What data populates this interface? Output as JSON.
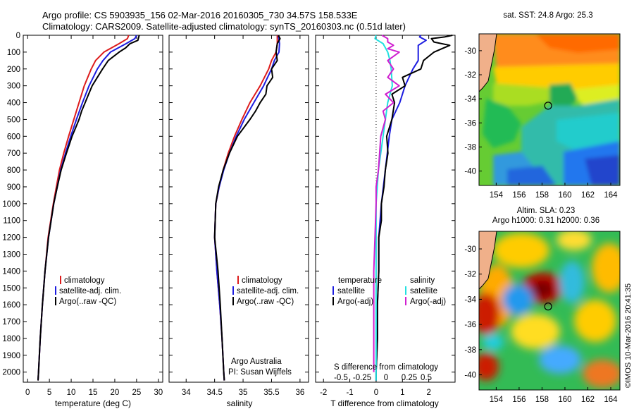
{
  "header": {
    "title_line1": "Argo profile: CS 5903935_156 02-Mar-2016 20160305_730 34.57S 158.533E",
    "title_line2": "Climatology: CARS2009. Satellite-adjusted climatology: synTS_20160303.nc (0.51d later)"
  },
  "colors": {
    "climatology": "#dd1c1c",
    "satellite": "#1c1ce0",
    "argo": "#000000",
    "salinity_satellite": "#22e0e0",
    "salinity_argo": "#d020d0"
  },
  "credit": "©IMOS 10-Mar-2016 20:41:35",
  "chart_data": [
    {
      "id": "temperature",
      "type": "line",
      "xlabel": "temperature (deg C)",
      "ylabel": "",
      "xlim": [
        -1,
        31
      ],
      "ylim": [
        2060,
        0
      ],
      "x_ticks": [
        0,
        5,
        10,
        15,
        20,
        25,
        30
      ],
      "y_ticks": [
        0,
        100,
        200,
        300,
        400,
        500,
        600,
        700,
        800,
        900,
        1000,
        1100,
        1200,
        1300,
        1400,
        1500,
        1600,
        1700,
        1800,
        1900,
        2000
      ],
      "legend": [
        "climatology",
        "satellite-adj. clim.",
        "Argo(..raw -QC)"
      ],
      "legend_position": "lower-center",
      "series": [
        {
          "name": "climatology",
          "color_key": "climatology",
          "depth": [
            0,
            20,
            50,
            100,
            150,
            200,
            300,
            400,
            500,
            600,
            700,
            800,
            900,
            1000,
            1200,
            1400,
            1600,
            1800,
            2000,
            2050
          ],
          "values": [
            23.2,
            22.9,
            21.0,
            17.5,
            15.6,
            14.6,
            13.0,
            11.8,
            10.6,
            9.4,
            8.3,
            7.3,
            6.6,
            5.9,
            4.7,
            4.0,
            3.4,
            2.9,
            2.5,
            2.4
          ]
        },
        {
          "name": "satellite-adj. clim.",
          "color_key": "satellite",
          "depth": [
            0,
            20,
            50,
            100,
            150,
            200,
            300,
            400,
            500,
            600,
            700,
            800,
            900,
            1000,
            1200,
            1400,
            1600,
            1800,
            2000,
            2050
          ],
          "values": [
            25.0,
            24.6,
            22.6,
            19.0,
            17.3,
            16.0,
            14.1,
            12.6,
            11.2,
            9.9,
            8.7,
            7.6,
            6.8,
            6.0,
            4.8,
            4.0,
            3.4,
            2.9,
            2.5,
            2.4
          ]
        },
        {
          "name": "Argo(..raw -QC)",
          "color_key": "argo",
          "depth": [
            0,
            10,
            30,
            50,
            75,
            100,
            150,
            200,
            250,
            300,
            350,
            400,
            450,
            500,
            550,
            600,
            700,
            800,
            900,
            1000,
            1200,
            1400,
            1600,
            1800,
            2000,
            2050
          ],
          "values": [
            25.6,
            25.5,
            25.3,
            23.5,
            22.5,
            21.0,
            18.5,
            17.2,
            16.0,
            14.8,
            14.0,
            13.2,
            12.4,
            11.8,
            11.0,
            10.2,
            8.9,
            7.7,
            6.8,
            6.0,
            4.8,
            4.0,
            3.4,
            2.9,
            2.5,
            2.4
          ]
        }
      ]
    },
    {
      "id": "salinity",
      "type": "line",
      "xlabel": "salinity",
      "xlim": [
        33.7,
        36.15
      ],
      "ylim": [
        2060,
        0
      ],
      "x_ticks": [
        34,
        34.5,
        35,
        35.5,
        36
      ],
      "legend": [
        "climatology",
        "satellite-adj. clim.",
        "Argo(..raw -QC)"
      ],
      "legend_position": "lower-center",
      "annotation_line1": "Argo Australia",
      "annotation_line2": "PI: Susan Wijffels",
      "series": [
        {
          "name": "climatology",
          "color_key": "climatology",
          "depth": [
            0,
            50,
            100,
            150,
            200,
            300,
            400,
            500,
            600,
            700,
            800,
            900,
            1000,
            1200,
            1400,
            1600,
            1800,
            2000,
            2050
          ],
          "values": [
            35.6,
            35.6,
            35.58,
            35.5,
            35.45,
            35.3,
            35.12,
            34.98,
            34.85,
            34.74,
            34.65,
            34.58,
            34.52,
            34.5,
            34.54,
            34.59,
            34.63,
            34.66,
            34.67
          ]
        },
        {
          "name": "satellite-adj. clim.",
          "color_key": "satellite",
          "depth": [
            0,
            50,
            100,
            150,
            200,
            300,
            400,
            500,
            600,
            700,
            800,
            900,
            1000,
            1200,
            1400,
            1600,
            1800,
            2000,
            2050
          ],
          "values": [
            35.62,
            35.64,
            35.63,
            35.55,
            35.5,
            35.36,
            35.19,
            35.02,
            34.88,
            34.76,
            34.66,
            34.58,
            34.52,
            34.5,
            34.54,
            34.59,
            34.63,
            34.66,
            34.67
          ]
        },
        {
          "name": "Argo(..raw -QC)",
          "color_key": "argo",
          "depth": [
            0,
            20,
            50,
            100,
            150,
            200,
            250,
            300,
            350,
            400,
            450,
            500,
            600,
            700,
            800,
            900,
            1000,
            1200,
            1400,
            1600,
            1800,
            2000,
            2050
          ],
          "values": [
            35.62,
            35.65,
            35.6,
            35.58,
            35.6,
            35.5,
            35.52,
            35.42,
            35.4,
            35.3,
            35.22,
            35.12,
            34.9,
            34.76,
            34.65,
            34.57,
            34.52,
            34.5,
            34.56,
            34.6,
            34.63,
            34.66,
            34.67
          ]
        }
      ]
    },
    {
      "id": "difference",
      "type": "line",
      "xlabel": "T difference from climatology",
      "xlabel_top": "S difference from climatology",
      "xlim": [
        -2.3,
        3.0
      ],
      "ylim": [
        2060,
        0
      ],
      "x_ticks": [
        -2,
        -1,
        0,
        1,
        2
      ],
      "x_ticks_salinity": [
        "-0.5",
        "-0.25",
        "0",
        "0.25",
        "0.5"
      ],
      "legend_temperature_heading": "temperature",
      "legend_salinity_heading": "salinity",
      "legend_temperature": [
        "satellite",
        "Argo(-adj)"
      ],
      "legend_salinity": [
        "satellite",
        "Argo(-adj)"
      ],
      "legend_position": "lower-center",
      "series": [
        {
          "name": "temperature satellite",
          "color_key": "satellite",
          "depth": [
            0,
            10,
            30,
            60,
            100,
            150,
            200,
            300,
            400,
            500,
            600,
            800,
            1000,
            1200,
            1400,
            1600,
            1800,
            2000,
            2050
          ],
          "values": [
            1.7,
            1.65,
            1.9,
            1.6,
            1.6,
            1.6,
            1.4,
            1.1,
            0.9,
            0.6,
            0.5,
            0.35,
            0.2,
            0.1,
            0.1,
            0.05,
            0.05,
            0.0,
            0.0
          ]
        },
        {
          "name": "temperature Argo(-adj)",
          "color_key": "argo",
          "depth": [
            0,
            10,
            20,
            40,
            60,
            80,
            100,
            150,
            200,
            250,
            300,
            350,
            400,
            500,
            600,
            700,
            800,
            900,
            1000,
            1100,
            1200,
            1400,
            1600,
            1800,
            2000,
            2050
          ],
          "values": [
            2.9,
            2.6,
            2.1,
            2.2,
            2.8,
            2.5,
            2.2,
            1.8,
            1.7,
            1.0,
            1.1,
            0.6,
            0.7,
            0.6,
            0.4,
            0.45,
            0.35,
            0.3,
            0.2,
            0.2,
            0.1,
            0.1,
            0.05,
            0.05,
            0.0,
            0.0
          ]
        },
        {
          "name": "salinity satellite",
          "color_key": "salinity_satellite",
          "depth": [
            0,
            20,
            50,
            100,
            150,
            200,
            300,
            400,
            500,
            600,
            700,
            800,
            1000,
            1200,
            1400,
            1600,
            1800,
            2000,
            2050
          ],
          "values": [
            0.0,
            -0.01,
            0.06,
            0.1,
            0.12,
            0.13,
            0.14,
            0.1,
            0.08,
            0.06,
            0.04,
            0.02,
            0.0,
            0.0,
            0.0,
            0.0,
            0.0,
            0.0,
            0.0
          ]
        },
        {
          "name": "salinity Argo(-adj)",
          "color_key": "salinity_argo",
          "depth": [
            0,
            20,
            40,
            60,
            80,
            100,
            150,
            200,
            250,
            300,
            350,
            400,
            450,
            500,
            600,
            700,
            800,
            900,
            1000,
            1200,
            1400,
            1600,
            1800,
            2000
          ],
          "values": [
            0.05,
            0.1,
            0.1,
            0.15,
            0.1,
            0.2,
            0.1,
            0.15,
            0.1,
            0.2,
            0.08,
            0.15,
            0.06,
            0.08,
            0.04,
            0.03,
            0.02,
            0.0,
            0.0,
            -0.01,
            -0.02,
            -0.02,
            -0.02,
            -0.02
          ]
        }
      ]
    },
    {
      "id": "sst_map",
      "type": "heatmap",
      "title": "sat. SST: 24.8 Argo: 25.3",
      "x_ticks": [
        154,
        156,
        158,
        160,
        162,
        164
      ],
      "y_ticks": [
        -30,
        -32,
        -34,
        -36,
        -38,
        -40
      ],
      "xlim": [
        152.5,
        164.8
      ],
      "ylim": [
        -41.2,
        -28.6
      ],
      "marker": {
        "lon": 158.533,
        "lat": -34.57
      }
    },
    {
      "id": "sla_map",
      "type": "heatmap",
      "title_line1": "Altim. SLA: 0.23",
      "title_line2": "Argo h1000: 0.31 h2000: 0.36",
      "x_ticks": [
        154,
        156,
        158,
        160,
        162,
        164
      ],
      "y_ticks": [
        -30,
        -32,
        -34,
        -36,
        -38,
        -40
      ],
      "xlim": [
        152.5,
        164.8
      ],
      "ylim": [
        -41.2,
        -28.6
      ],
      "marker": {
        "lon": 158.533,
        "lat": -34.57
      }
    }
  ]
}
